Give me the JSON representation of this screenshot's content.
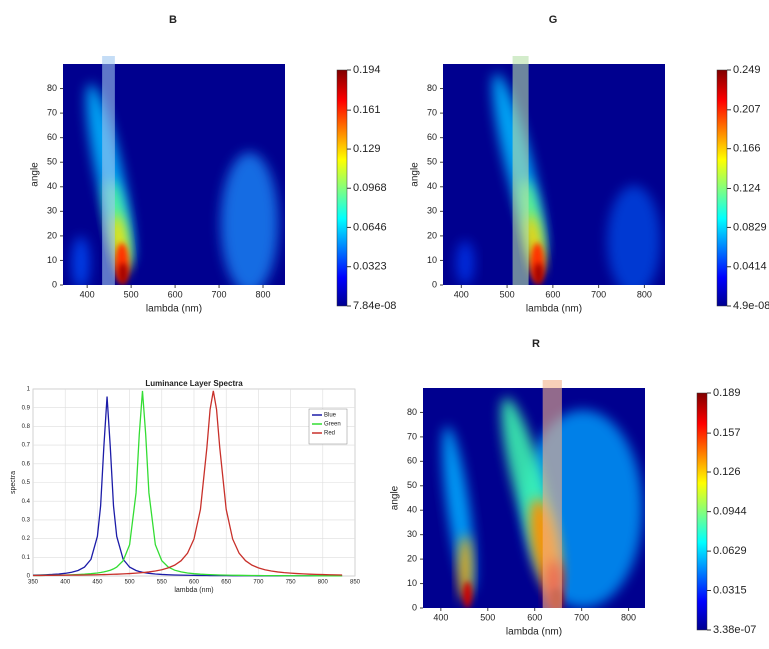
{
  "chart_data": [
    {
      "type": "heatmap",
      "title": "B",
      "x_label": "lambda (nm)",
      "y_label": "angle",
      "xlim": [
        345,
        850
      ],
      "ylim": [
        0,
        90
      ],
      "xticks": [
        400,
        500,
        600,
        700,
        800
      ],
      "yticks": [
        0,
        10,
        20,
        30,
        40,
        50,
        60,
        70,
        80
      ],
      "band": [
        434,
        463
      ],
      "band_color": "#9ec6f0",
      "colorbar": {
        "lim": [
          7.84e-08,
          0.194
        ],
        "ticks": [
          {
            "value": 7.84e-08,
            "label": "7.84e-08"
          },
          0.0323,
          0.0646,
          0.0968,
          0.129,
          0.161,
          0.194
        ]
      }
    },
    {
      "type": "heatmap",
      "title": "G",
      "x_label": "lambda (nm)",
      "y_label": "angle",
      "xlim": [
        360,
        845
      ],
      "ylim": [
        0,
        90
      ],
      "xticks": [
        400,
        500,
        600,
        700,
        800
      ],
      "yticks": [
        0,
        10,
        20,
        30,
        40,
        50,
        60,
        70,
        80
      ],
      "band": [
        512,
        547
      ],
      "band_color": "#b6e0a8",
      "colorbar": {
        "lim": [
          4.9e-08,
          0.249
        ],
        "ticks": [
          {
            "value": 4.9e-08,
            "label": "4.9e-08"
          },
          0.0414,
          0.0829,
          0.124,
          0.166,
          0.207,
          0.249
        ]
      }
    },
    {
      "type": "heatmap",
      "title": "R",
      "x_label": "lambda (nm)",
      "y_label": "angle",
      "xlim": [
        362,
        835
      ],
      "ylim": [
        0,
        90
      ],
      "xticks": [
        400,
        500,
        600,
        700,
        800
      ],
      "yticks": [
        0,
        10,
        20,
        30,
        40,
        50,
        60,
        70,
        80
      ],
      "band": [
        617,
        658
      ],
      "band_color": "#f4b08a",
      "colorbar": {
        "lim": [
          3.38e-07,
          0.189
        ],
        "ticks": [
          {
            "value": 3.38e-07,
            "label": "3.38e-07"
          },
          0.0315,
          0.0629,
          0.0944,
          0.126,
          0.157,
          0.189
        ]
      }
    },
    {
      "type": "line",
      "title": "Luminance Layer Spectra",
      "x_label": "lambda (nm)",
      "y_label": "spectra",
      "xlim": [
        350,
        850
      ],
      "ylim": [
        0,
        1
      ],
      "xticks": [
        350,
        400,
        450,
        500,
        550,
        600,
        650,
        700,
        750,
        800,
        850
      ],
      "yticks": [
        0,
        0.1,
        0.2,
        0.3,
        0.4,
        0.5,
        0.6,
        0.7,
        0.8,
        0.9,
        1
      ],
      "grid": true,
      "legend": "upper right",
      "x": [
        350,
        360,
        370,
        380,
        390,
        400,
        410,
        420,
        430,
        440,
        450,
        455,
        460,
        465,
        470,
        475,
        480,
        490,
        500,
        510,
        515,
        520,
        525,
        530,
        540,
        550,
        560,
        570,
        580,
        590,
        600,
        610,
        620,
        625,
        630,
        635,
        640,
        650,
        660,
        670,
        680,
        690,
        700,
        710,
        720,
        730,
        740,
        750,
        760,
        770,
        780,
        790,
        800,
        810,
        820,
        830
      ],
      "series": [
        {
          "name": "Blue",
          "color": "#1c1ca8",
          "values": [
            0.0046,
            0.0055,
            0.0068,
            0.0084,
            0.0108,
            0.0143,
            0.0199,
            0.0294,
            0.0477,
            0.089,
            0.212,
            0.375,
            0.69,
            0.96,
            0.69,
            0.375,
            0.212,
            0.089,
            0.0477,
            0.0294,
            0.024,
            0.0199,
            0.0168,
            0.0143,
            0.0108,
            0.0084,
            0.0068,
            0.0055,
            0.0046,
            0.0039,
            0.0034,
            0.0029,
            0.0026,
            0.0024,
            0.0022,
            0.0021,
            0.002,
            0.0018,
            0.0016,
            0.0015,
            0.0013,
            0.0012,
            0.0011,
            0.001,
            0.001,
            0.0009,
            0.0009,
            0.0008,
            0.0008,
            0.0007,
            0.0007,
            0.0007,
            0.0006,
            0.0006,
            0.0006,
            0.0005
          ]
        },
        {
          "name": "Green",
          "color": "#33dd33",
          "values": [
            0.0028,
            0.0031,
            0.0036,
            0.0041,
            0.0047,
            0.0055,
            0.0066,
            0.008,
            0.0098,
            0.0124,
            0.0161,
            0.0186,
            0.0218,
            0.0258,
            0.031,
            0.038,
            0.0477,
            0.0818,
            0.167,
            0.444,
            0.756,
            0.99,
            0.756,
            0.444,
            0.167,
            0.0818,
            0.0477,
            0.031,
            0.0218,
            0.0161,
            0.0124,
            0.0098,
            0.008,
            0.0072,
            0.0066,
            0.006,
            0.0055,
            0.0047,
            0.0041,
            0.0036,
            0.0031,
            0.0028,
            0.0025,
            0.0022,
            0.002,
            0.0018,
            0.0017,
            0.0015,
            0.0014,
            0.0013,
            0.0012,
            0.0011,
            0.001,
            0.001,
            0.0009,
            0.0008
          ]
        },
        {
          "name": "Red",
          "color": "#c8302a",
          "values": [
            0.0028,
            0.003,
            0.0033,
            0.0036,
            0.0039,
            0.0042,
            0.0046,
            0.005,
            0.0055,
            0.0062,
            0.0068,
            0.0072,
            0.0077,
            0.0081,
            0.0086,
            0.0092,
            0.0098,
            0.0112,
            0.013,
            0.0152,
            0.0166,
            0.0181,
            0.0198,
            0.0218,
            0.0268,
            0.0337,
            0.0434,
            0.0582,
            0.0818,
            0.122,
            0.198,
            0.356,
            0.686,
            0.891,
            0.99,
            0.891,
            0.686,
            0.356,
            0.198,
            0.122,
            0.0818,
            0.0582,
            0.0434,
            0.0337,
            0.0268,
            0.0218,
            0.0181,
            0.0152,
            0.013,
            0.0112,
            0.0098,
            0.0086,
            0.0077,
            0.0068,
            0.0062,
            0.0055
          ]
        }
      ]
    }
  ]
}
